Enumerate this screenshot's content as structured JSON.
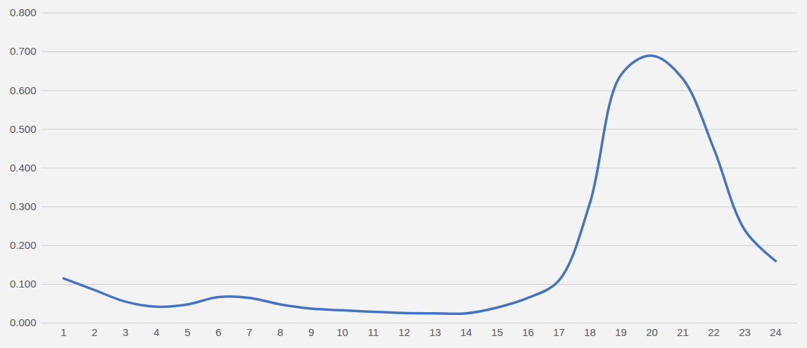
{
  "chart_data": {
    "type": "line",
    "categories": [
      "1",
      "2",
      "3",
      "4",
      "5",
      "6",
      "7",
      "8",
      "9",
      "10",
      "11",
      "12",
      "13",
      "14",
      "15",
      "16",
      "17",
      "18",
      "19",
      "20",
      "21",
      "22",
      "23",
      "24"
    ],
    "values": [
      0.115,
      0.085,
      0.055,
      0.042,
      0.048,
      0.067,
      0.065,
      0.048,
      0.037,
      0.033,
      0.029,
      0.026,
      0.025,
      0.025,
      0.04,
      0.065,
      0.11,
      0.31,
      0.64,
      0.69,
      0.63,
      0.45,
      0.24,
      0.16
    ],
    "color": "#4472c4",
    "ylim": [
      0,
      0.8
    ],
    "yticks": [
      {
        "value": 0,
        "label": "0.000"
      },
      {
        "value": 0.1,
        "label": "0.100"
      },
      {
        "value": 0.2,
        "label": "0.200"
      },
      {
        "value": 0.3,
        "label": "0.300"
      },
      {
        "value": 0.4,
        "label": "0.400"
      },
      {
        "value": 0.5,
        "label": "0.500"
      },
      {
        "value": 0.6,
        "label": "0.600"
      },
      {
        "value": 0.7,
        "label": "0.700"
      },
      {
        "value": 0.8,
        "label": "0.800"
      }
    ],
    "grid": true
  }
}
